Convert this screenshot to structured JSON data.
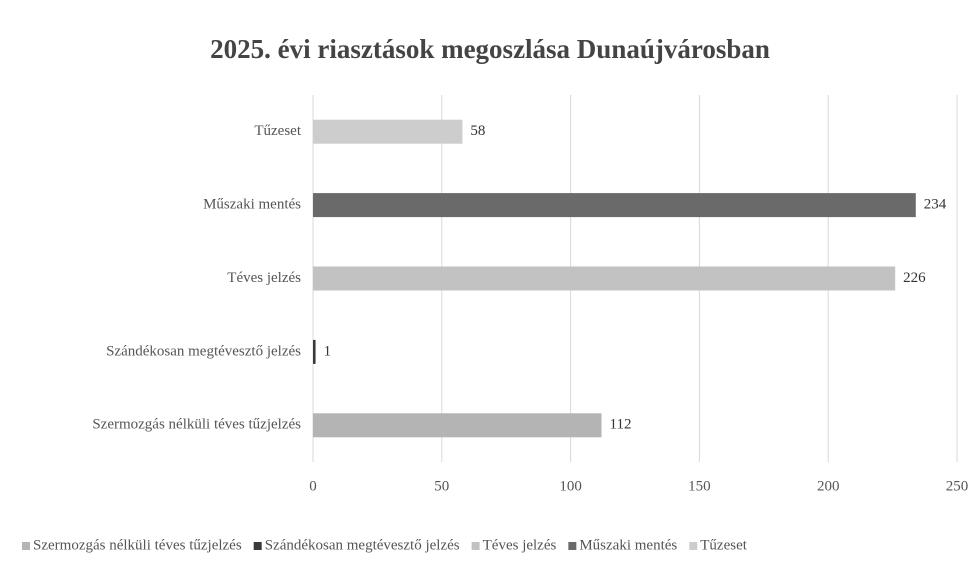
{
  "chart_data": {
    "type": "bar",
    "orientation": "horizontal",
    "title": "2025. évi riasztások megoszlása Dunaújvárosban",
    "categories": [
      "Szermozgás nélküli téves tűzjelzés",
      "Szándékosan megtévesztő jelzés",
      "Téves jelzés",
      "Műszaki mentés",
      "Tűzeset"
    ],
    "values": [
      112,
      1,
      226,
      234,
      58
    ],
    "colors": [
      "#b4b4b4",
      "#3a3a3a",
      "#c2c2c2",
      "#6a6a6a",
      "#cdcdcd"
    ],
    "xlim": [
      0,
      250
    ],
    "xticks": [
      0,
      50,
      100,
      150,
      200,
      250
    ],
    "grid": true,
    "legend": "bottom"
  }
}
